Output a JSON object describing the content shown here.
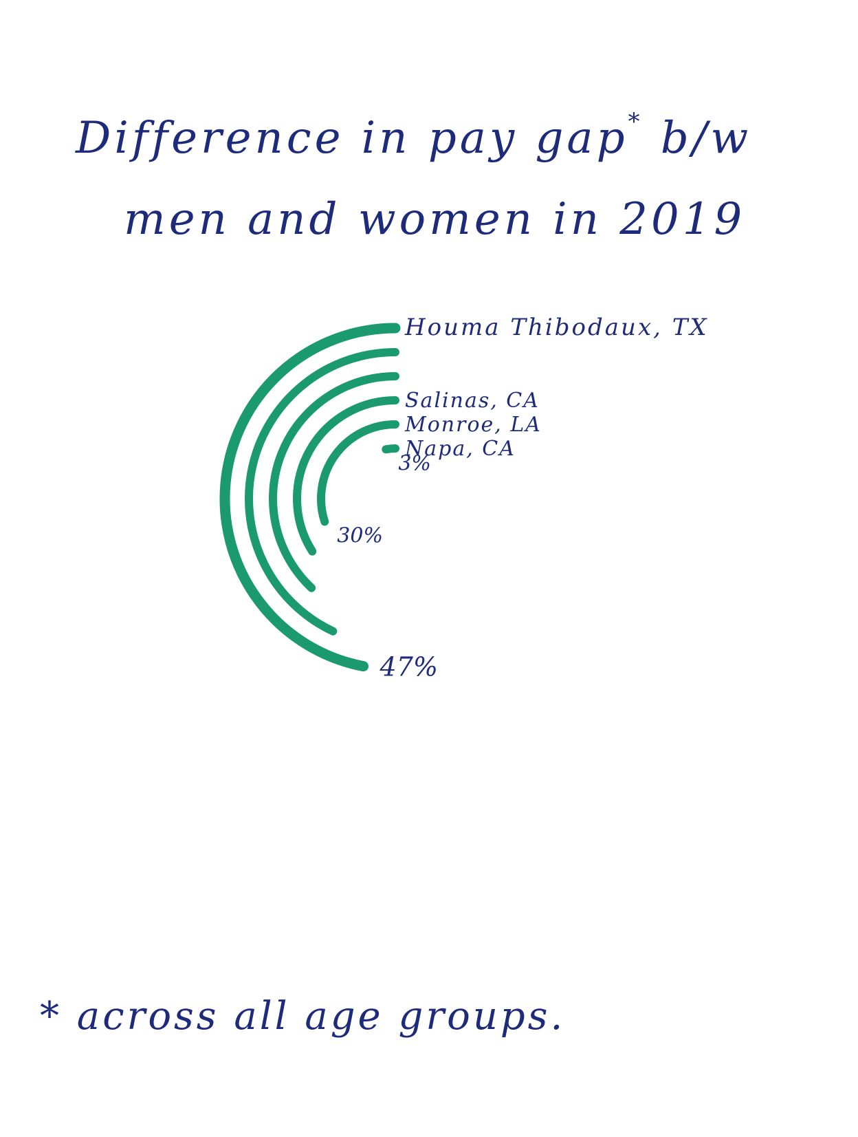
{
  "title": {
    "line1": "Difference in pay gap",
    "marker": "*",
    "line1_end": "b/w",
    "line2": "men and women in 2019"
  },
  "footnote": "* across all age groups.",
  "chart_data": {
    "type": "radial-bar",
    "title": "Difference in pay gap* b/w men and women in 2019",
    "categories": [
      "Houma Thibodaux, TX",
      "",
      "",
      "Salinas, CA",
      "Monroe, LA",
      "Napa, CA"
    ],
    "values": [
      47,
      43,
      38,
      34,
      30,
      3
    ],
    "value_labels": [
      "47%",
      "",
      "",
      "",
      "30%",
      "3%"
    ],
    "colors": {
      "bar": "#1a9a6e",
      "ink": "#1e2a7a"
    },
    "note": "* across all age groups."
  }
}
